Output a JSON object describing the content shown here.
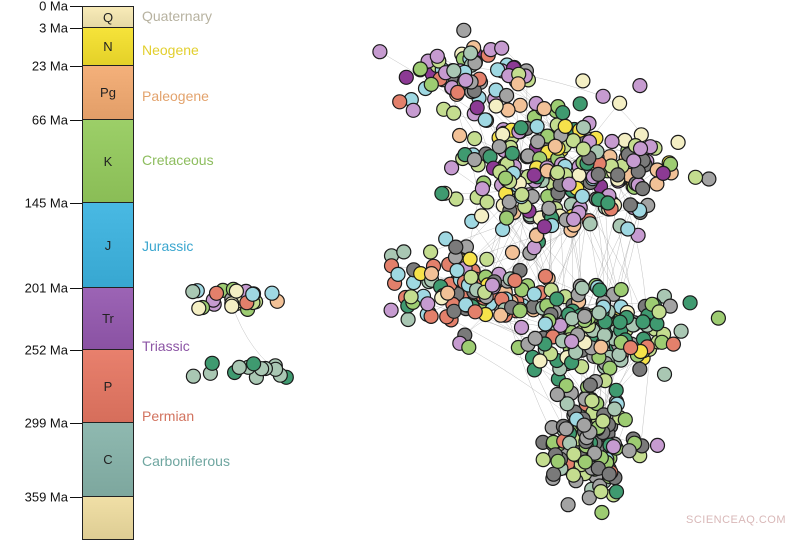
{
  "timescale": {
    "boundaries": [
      {
        "label": "0 Ma",
        "ma": 0
      },
      {
        "label": "3 Ma",
        "ma": 3
      },
      {
        "label": "23 Ma",
        "ma": 23
      },
      {
        "label": "66 Ma",
        "ma": 66
      },
      {
        "label": "145 Ma",
        "ma": 145
      },
      {
        "label": "201 Ma",
        "ma": 201
      },
      {
        "label": "252 Ma",
        "ma": 252
      },
      {
        "label": "299 Ma",
        "ma": 299
      },
      {
        "label": "359 Ma",
        "ma": 359
      }
    ],
    "periods": [
      {
        "code": "Q",
        "name": "Quaternary",
        "color": "#f8ebb8",
        "name_color": "#b7b2a0"
      },
      {
        "code": "N",
        "name": "Neogene",
        "color": "#f6e33a",
        "name_color": "#e2cf2e"
      },
      {
        "code": "Pg",
        "name": "Paleogene",
        "color": "#f4b07a",
        "name_color": "#e3a36d"
      },
      {
        "code": "K",
        "name": "Cretaceous",
        "color": "#9ccf68",
        "name_color": "#8dbd5e"
      },
      {
        "code": "J",
        "name": "Jurassic",
        "color": "#49b9e3",
        "name_color": "#3aa6cf"
      },
      {
        "code": "Tr",
        "name": "Triassic",
        "color": "#9c64b5",
        "name_color": "#8c55a5"
      },
      {
        "code": "P",
        "name": "Permian",
        "color": "#e8806d",
        "name_color": "#d2735f"
      },
      {
        "code": "C",
        "name": "Carboniferous",
        "color": "#8fb9b0",
        "name_color": "#6fa6a0"
      },
      {
        "code": "",
        "name": "",
        "color": "#f0dfa6",
        "name_color": "#c8b986"
      }
    ]
  },
  "network": {
    "node_palette": [
      {
        "period": "Quaternary",
        "color": "#f4efc4"
      },
      {
        "period": "Neogene",
        "color": "#f6e24a"
      },
      {
        "period": "Paleogene",
        "color": "#f2c197"
      },
      {
        "period": "Cretaceous",
        "color": "#9dcc72"
      },
      {
        "period": "Cretaceous-late",
        "color": "#c4dd8f"
      },
      {
        "period": "Jurassic",
        "color": "#9fd8e2"
      },
      {
        "period": "Triassic",
        "color": "#c69bd0"
      },
      {
        "period": "Triassic-dark",
        "color": "#8c3a94"
      },
      {
        "period": "Permian",
        "color": "#e3806b"
      },
      {
        "period": "Carboniferous",
        "color": "#a9c7b3"
      },
      {
        "period": "Carboniferous-dark",
        "color": "#3f9a70"
      },
      {
        "period": "Unknown",
        "color": "#a3a3a3"
      },
      {
        "period": "Unknown-dark",
        "color": "#7a7a7a"
      }
    ],
    "edge_color": "#9a9a9a"
  },
  "watermark": "SCIENCEAQ.COM"
}
